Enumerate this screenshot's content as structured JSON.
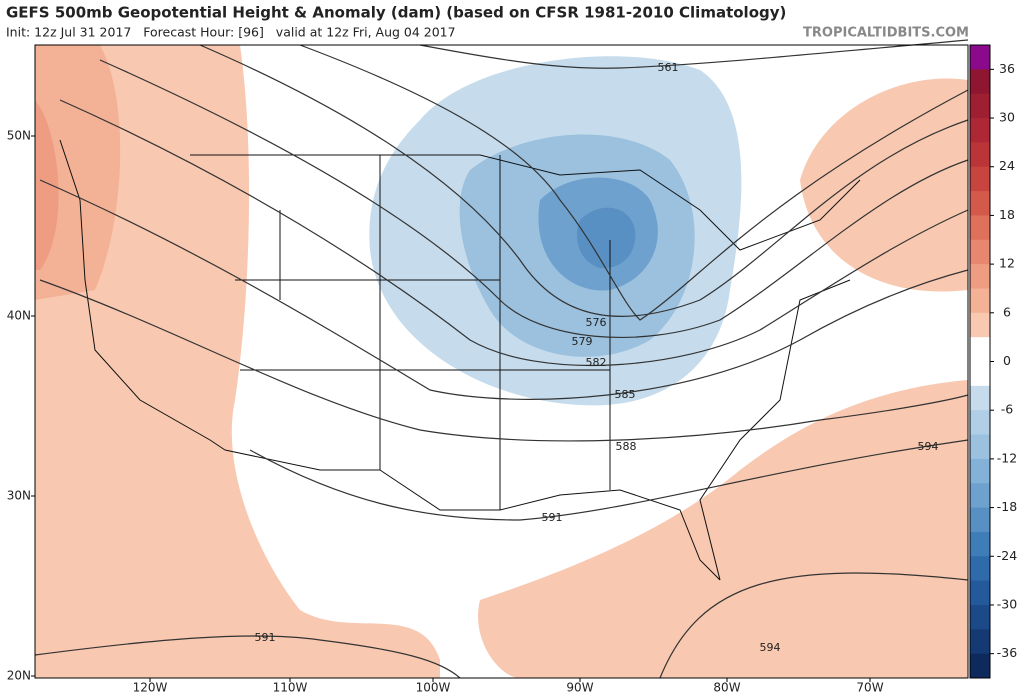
{
  "header": {
    "title": "GEFS 500mb Geopotential Height & Anomaly (dam) (based on CFSR 1981-2010 Climatology)",
    "subtitle": "Init: 12z Jul 31 2017   Forecast Hour: [96]   valid at 12z Fri, Aug 04 2017",
    "watermark": "TROPICALTIDBITS.COM"
  },
  "map": {
    "lat_labels": [
      "50N",
      "40N",
      "30N",
      "20N"
    ],
    "lon_labels": [
      "120W",
      "110W",
      "100W",
      "90W",
      "80W",
      "70W"
    ],
    "contour_labels": [
      561,
      576,
      579,
      582,
      585,
      588,
      591,
      594,
      591,
      594
    ]
  },
  "colorbar": {
    "range": [
      -39,
      39
    ],
    "ticks": [
      36,
      30,
      24,
      18,
      12,
      6,
      0,
      -6,
      -12,
      -18,
      -24,
      -30,
      -36
    ],
    "colors": [
      "#8b0a8b",
      "#8e1630",
      "#9e1f31",
      "#ad2834",
      "#bb3538",
      "#c8453f",
      "#d35a4b",
      "#de705c",
      "#e7876f",
      "#ee9c82",
      "#f3b196",
      "#f8c8b0",
      "#ffffff",
      "#ffffff",
      "#c6dcec",
      "#b0cfe6",
      "#9bc1df",
      "#84b1d7",
      "#6ea1ce",
      "#5890c4",
      "#3f7db9",
      "#2f6aab",
      "#245a9b",
      "#1c4a88",
      "#153a73",
      "#0e2a5c"
    ]
  }
}
